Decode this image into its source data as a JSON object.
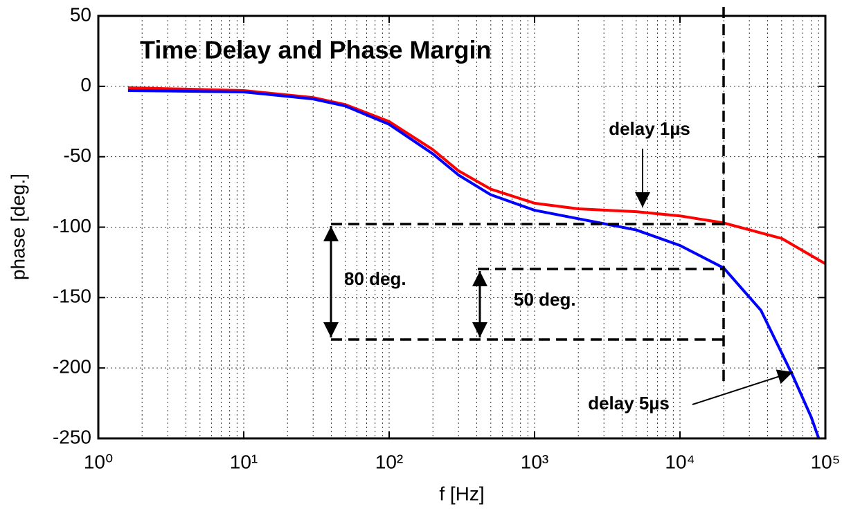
{
  "chart_data": {
    "type": "line",
    "title": "Time Delay and Phase Margin",
    "xlabel": "f [Hz]",
    "ylabel": "phase [deg.]",
    "xscale": "log",
    "grid": true,
    "xlim": [
      1,
      100000
    ],
    "xticks": [
      {
        "value": 1,
        "label": "10⁰"
      },
      {
        "value": 10,
        "label": "10¹"
      },
      {
        "value": 100,
        "label": "10²"
      },
      {
        "value": 1000,
        "label": "10³"
      },
      {
        "value": 10000,
        "label": "10⁴"
      },
      {
        "value": 100000,
        "label": "10⁵"
      }
    ],
    "ylim": [
      -250,
      50
    ],
    "yticks": [
      50,
      0,
      -50,
      -100,
      -150,
      -200,
      -250
    ],
    "series": [
      {
        "color": "#ff0000",
        "x": [
          1.6,
          10,
          30,
          50,
          100,
          200,
          300,
          500,
          1000,
          2000,
          5000,
          10000,
          20000,
          50000,
          100000
        ],
        "values": [
          -1,
          -3,
          -8,
          -13,
          -25,
          -45,
          -60,
          -73,
          -83,
          -87,
          -89,
          -92,
          -97,
          -108,
          -126
        ]
      },
      {
        "color": "#0000ff",
        "x": [
          1.6,
          10,
          30,
          50,
          100,
          200,
          300,
          500,
          1000,
          2000,
          5000,
          10000,
          20000,
          36000,
          60000,
          80000,
          90000
        ],
        "values": [
          -3,
          -4,
          -9,
          -14,
          -27,
          -48,
          -63,
          -77,
          -88,
          -94,
          -102,
          -113,
          -129,
          -159,
          -206,
          -235,
          -250
        ]
      }
    ],
    "annotations": [
      "delay 1µs",
      "delay 5µs",
      "80 deg.",
      "50 deg."
    ]
  }
}
